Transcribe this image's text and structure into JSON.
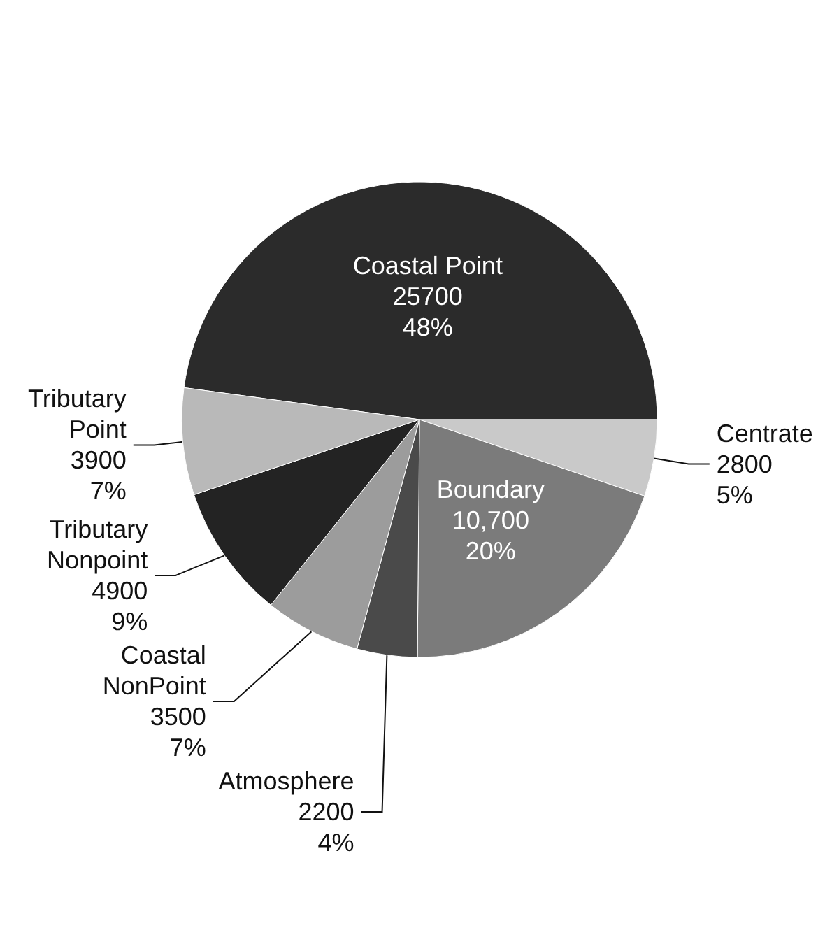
{
  "chart_data": {
    "type": "pie",
    "categories": [
      "Coastal Point",
      "Centrate",
      "Boundary",
      "Atmosphere",
      "Coastal NonPoint",
      "Tributary Nonpoint",
      "Tributary Point"
    ],
    "values": [
      25700,
      2800,
      10700,
      2200,
      3500,
      4900,
      3900
    ],
    "value_labels": [
      "25700\n48%",
      "2800\n5%",
      "10,700\n20%",
      "2200\n4%",
      "3500\n7%",
      "4900\n9%",
      "3900\n7%"
    ],
    "colors": [
      "#2b2b2b",
      "#c9c9c9",
      "#7b7b7b",
      "#4a4a4a",
      "#9c9c9c",
      "#232323",
      "#b9b9b9"
    ]
  }
}
